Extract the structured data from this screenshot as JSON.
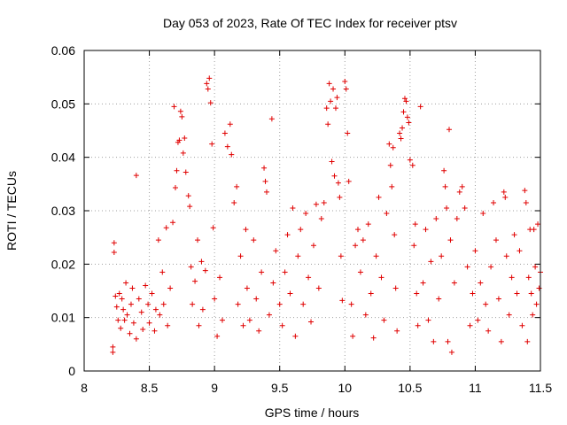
{
  "chart_data": {
    "type": "scatter",
    "title": "Day 053 of 2023, Rate Of TEC Index for receiver ptsv",
    "xlabel": "GPS time / hours",
    "ylabel": "ROTI / TECUs",
    "xlim": [
      8,
      11.5
    ],
    "ylim": [
      0,
      0.06
    ],
    "x_ticks": [
      8,
      8.5,
      9,
      9.5,
      10,
      10.5,
      11,
      11.5
    ],
    "x_tick_labels": [
      "8",
      "8.5",
      "9",
      "9.5",
      "10",
      "10.5",
      "11",
      "11.5"
    ],
    "y_ticks": [
      0,
      0.01,
      0.02,
      0.03,
      0.04,
      0.05,
      0.06
    ],
    "y_tick_labels": [
      "0",
      "0.01",
      "0.02",
      "0.03",
      "0.04",
      "0.05",
      "0.06"
    ],
    "grid": true,
    "marker": "+",
    "marker_color": "#e00000",
    "series": [
      {
        "name": "ROTI",
        "points": [
          [
            8.22,
            0.0035
          ],
          [
            8.22,
            0.0045
          ],
          [
            8.23,
            0.0222
          ],
          [
            8.23,
            0.024
          ],
          [
            8.24,
            0.014
          ],
          [
            8.25,
            0.012
          ],
          [
            8.26,
            0.0095
          ],
          [
            8.27,
            0.0145
          ],
          [
            8.28,
            0.008
          ],
          [
            8.29,
            0.0135
          ],
          [
            8.3,
            0.0115
          ],
          [
            8.31,
            0.0095
          ],
          [
            8.32,
            0.0165
          ],
          [
            8.33,
            0.0105
          ],
          [
            8.35,
            0.007
          ],
          [
            8.36,
            0.0125
          ],
          [
            8.37,
            0.0155
          ],
          [
            8.38,
            0.009
          ],
          [
            8.4,
            0.006
          ],
          [
            8.4,
            0.0366
          ],
          [
            8.42,
            0.0135
          ],
          [
            8.44,
            0.011
          ],
          [
            8.45,
            0.0078
          ],
          [
            8.47,
            0.016
          ],
          [
            8.49,
            0.0125
          ],
          [
            8.5,
            0.009
          ],
          [
            8.52,
            0.0145
          ],
          [
            8.54,
            0.0075
          ],
          [
            8.55,
            0.0115
          ],
          [
            8.57,
            0.0245
          ],
          [
            8.58,
            0.0105
          ],
          [
            8.6,
            0.0185
          ],
          [
            8.61,
            0.0125
          ],
          [
            8.63,
            0.0268
          ],
          [
            8.64,
            0.0085
          ],
          [
            8.66,
            0.0155
          ],
          [
            8.68,
            0.0278
          ],
          [
            8.69,
            0.0495
          ],
          [
            8.7,
            0.0343
          ],
          [
            8.71,
            0.0375
          ],
          [
            8.72,
            0.0428
          ],
          [
            8.73,
            0.0432
          ],
          [
            8.74,
            0.0486
          ],
          [
            8.75,
            0.0476
          ],
          [
            8.76,
            0.0408
          ],
          [
            8.77,
            0.0436
          ],
          [
            8.78,
            0.0372
          ],
          [
            8.8,
            0.0328
          ],
          [
            8.81,
            0.0308
          ],
          [
            8.82,
            0.0195
          ],
          [
            8.83,
            0.0125
          ],
          [
            8.85,
            0.0168
          ],
          [
            8.87,
            0.0245
          ],
          [
            8.88,
            0.0085
          ],
          [
            8.9,
            0.0205
          ],
          [
            8.91,
            0.0115
          ],
          [
            8.93,
            0.0188
          ],
          [
            8.94,
            0.0538
          ],
          [
            8.95,
            0.0528
          ],
          [
            8.96,
            0.0548
          ],
          [
            8.97,
            0.0502
          ],
          [
            8.98,
            0.0425
          ],
          [
            8.99,
            0.0268
          ],
          [
            9.0,
            0.0135
          ],
          [
            9.02,
            0.0065
          ],
          [
            9.04,
            0.0175
          ],
          [
            9.06,
            0.0095
          ],
          [
            9.08,
            0.0445
          ],
          [
            9.1,
            0.042
          ],
          [
            9.12,
            0.0462
          ],
          [
            9.13,
            0.0405
          ],
          [
            9.15,
            0.0315
          ],
          [
            9.17,
            0.0345
          ],
          [
            9.18,
            0.0125
          ],
          [
            9.2,
            0.0215
          ],
          [
            9.22,
            0.0085
          ],
          [
            9.24,
            0.0265
          ],
          [
            9.25,
            0.0155
          ],
          [
            9.27,
            0.0095
          ],
          [
            9.3,
            0.0245
          ],
          [
            9.32,
            0.0135
          ],
          [
            9.34,
            0.0075
          ],
          [
            9.36,
            0.0185
          ],
          [
            9.38,
            0.038
          ],
          [
            9.39,
            0.0355
          ],
          [
            9.4,
            0.0335
          ],
          [
            9.42,
            0.0105
          ],
          [
            9.44,
            0.0472
          ],
          [
            9.45,
            0.0165
          ],
          [
            9.47,
            0.0225
          ],
          [
            9.5,
            0.0125
          ],
          [
            9.52,
            0.0085
          ],
          [
            9.54,
            0.0185
          ],
          [
            9.56,
            0.0255
          ],
          [
            9.58,
            0.0145
          ],
          [
            9.6,
            0.0305
          ],
          [
            9.62,
            0.0065
          ],
          [
            9.64,
            0.0215
          ],
          [
            9.66,
            0.0265
          ],
          [
            9.68,
            0.0125
          ],
          [
            9.7,
            0.0295
          ],
          [
            9.72,
            0.0175
          ],
          [
            9.74,
            0.0092
          ],
          [
            9.76,
            0.0235
          ],
          [
            9.78,
            0.0312
          ],
          [
            9.8,
            0.0155
          ],
          [
            9.82,
            0.0285
          ],
          [
            9.84,
            0.0315
          ],
          [
            9.86,
            0.0492
          ],
          [
            9.87,
            0.0462
          ],
          [
            9.88,
            0.0538
          ],
          [
            9.89,
            0.0505
          ],
          [
            9.9,
            0.0392
          ],
          [
            9.91,
            0.0528
          ],
          [
            9.92,
            0.0365
          ],
          [
            9.93,
            0.0492
          ],
          [
            9.94,
            0.0512
          ],
          [
            9.95,
            0.0352
          ],
          [
            9.96,
            0.0325
          ],
          [
            9.97,
            0.0215
          ],
          [
            9.98,
            0.0132
          ],
          [
            10.0,
            0.0542
          ],
          [
            10.01,
            0.0528
          ],
          [
            10.02,
            0.0445
          ],
          [
            10.03,
            0.0355
          ],
          [
            10.05,
            0.0125
          ],
          [
            10.06,
            0.0065
          ],
          [
            10.08,
            0.0235
          ],
          [
            10.1,
            0.0265
          ],
          [
            10.12,
            0.0185
          ],
          [
            10.14,
            0.0245
          ],
          [
            10.16,
            0.0105
          ],
          [
            10.18,
            0.0275
          ],
          [
            10.2,
            0.0145
          ],
          [
            10.22,
            0.0062
          ],
          [
            10.24,
            0.0215
          ],
          [
            10.26,
            0.0325
          ],
          [
            10.28,
            0.0175
          ],
          [
            10.3,
            0.0095
          ],
          [
            10.32,
            0.0295
          ],
          [
            10.34,
            0.0425
          ],
          [
            10.35,
            0.0385
          ],
          [
            10.36,
            0.0345
          ],
          [
            10.37,
            0.0418
          ],
          [
            10.38,
            0.0255
          ],
          [
            10.39,
            0.0155
          ],
          [
            10.4,
            0.0075
          ],
          [
            10.42,
            0.0445
          ],
          [
            10.43,
            0.0435
          ],
          [
            10.44,
            0.0455
          ],
          [
            10.45,
            0.0485
          ],
          [
            10.46,
            0.051
          ],
          [
            10.47,
            0.0505
          ],
          [
            10.48,
            0.0475
          ],
          [
            10.49,
            0.0465
          ],
          [
            10.5,
            0.0395
          ],
          [
            10.52,
            0.0385
          ],
          [
            10.53,
            0.0235
          ],
          [
            10.54,
            0.0275
          ],
          [
            10.55,
            0.0145
          ],
          [
            10.56,
            0.0085
          ],
          [
            10.58,
            0.0495
          ],
          [
            10.6,
            0.0165
          ],
          [
            10.62,
            0.0265
          ],
          [
            10.64,
            0.0095
          ],
          [
            10.66,
            0.0205
          ],
          [
            10.68,
            0.0055
          ],
          [
            10.7,
            0.0285
          ],
          [
            10.72,
            0.0135
          ],
          [
            10.74,
            0.0215
          ],
          [
            10.76,
            0.0375
          ],
          [
            10.77,
            0.0345
          ],
          [
            10.78,
            0.0305
          ],
          [
            10.79,
            0.0055
          ],
          [
            10.8,
            0.0452
          ],
          [
            10.81,
            0.0245
          ],
          [
            10.82,
            0.0035
          ],
          [
            10.84,
            0.0165
          ],
          [
            10.86,
            0.0285
          ],
          [
            10.88,
            0.0335
          ],
          [
            10.9,
            0.0345
          ],
          [
            10.92,
            0.0305
          ],
          [
            10.94,
            0.0195
          ],
          [
            10.96,
            0.0085
          ],
          [
            10.98,
            0.0145
          ],
          [
            11.0,
            0.0225
          ],
          [
            11.02,
            0.0095
          ],
          [
            11.04,
            0.0165
          ],
          [
            11.06,
            0.0295
          ],
          [
            11.08,
            0.0125
          ],
          [
            11.1,
            0.0075
          ],
          [
            11.12,
            0.0195
          ],
          [
            11.14,
            0.0315
          ],
          [
            11.16,
            0.0245
          ],
          [
            11.18,
            0.0135
          ],
          [
            11.2,
            0.0055
          ],
          [
            11.22,
            0.0335
          ],
          [
            11.23,
            0.0325
          ],
          [
            11.24,
            0.0215
          ],
          [
            11.26,
            0.0105
          ],
          [
            11.28,
            0.0175
          ],
          [
            11.3,
            0.0255
          ],
          [
            11.32,
            0.0145
          ],
          [
            11.34,
            0.0225
          ],
          [
            11.36,
            0.0085
          ],
          [
            11.38,
            0.0338
          ],
          [
            11.39,
            0.0315
          ],
          [
            11.4,
            0.0055
          ],
          [
            11.41,
            0.0175
          ],
          [
            11.42,
            0.0265
          ],
          [
            11.43,
            0.0145
          ],
          [
            11.44,
            0.0105
          ],
          [
            11.45,
            0.0265
          ],
          [
            11.46,
            0.0195
          ],
          [
            11.47,
            0.0125
          ],
          [
            11.48,
            0.0275
          ],
          [
            11.49,
            0.0155
          ],
          [
            11.5,
            0.0185
          ]
        ]
      }
    ]
  }
}
